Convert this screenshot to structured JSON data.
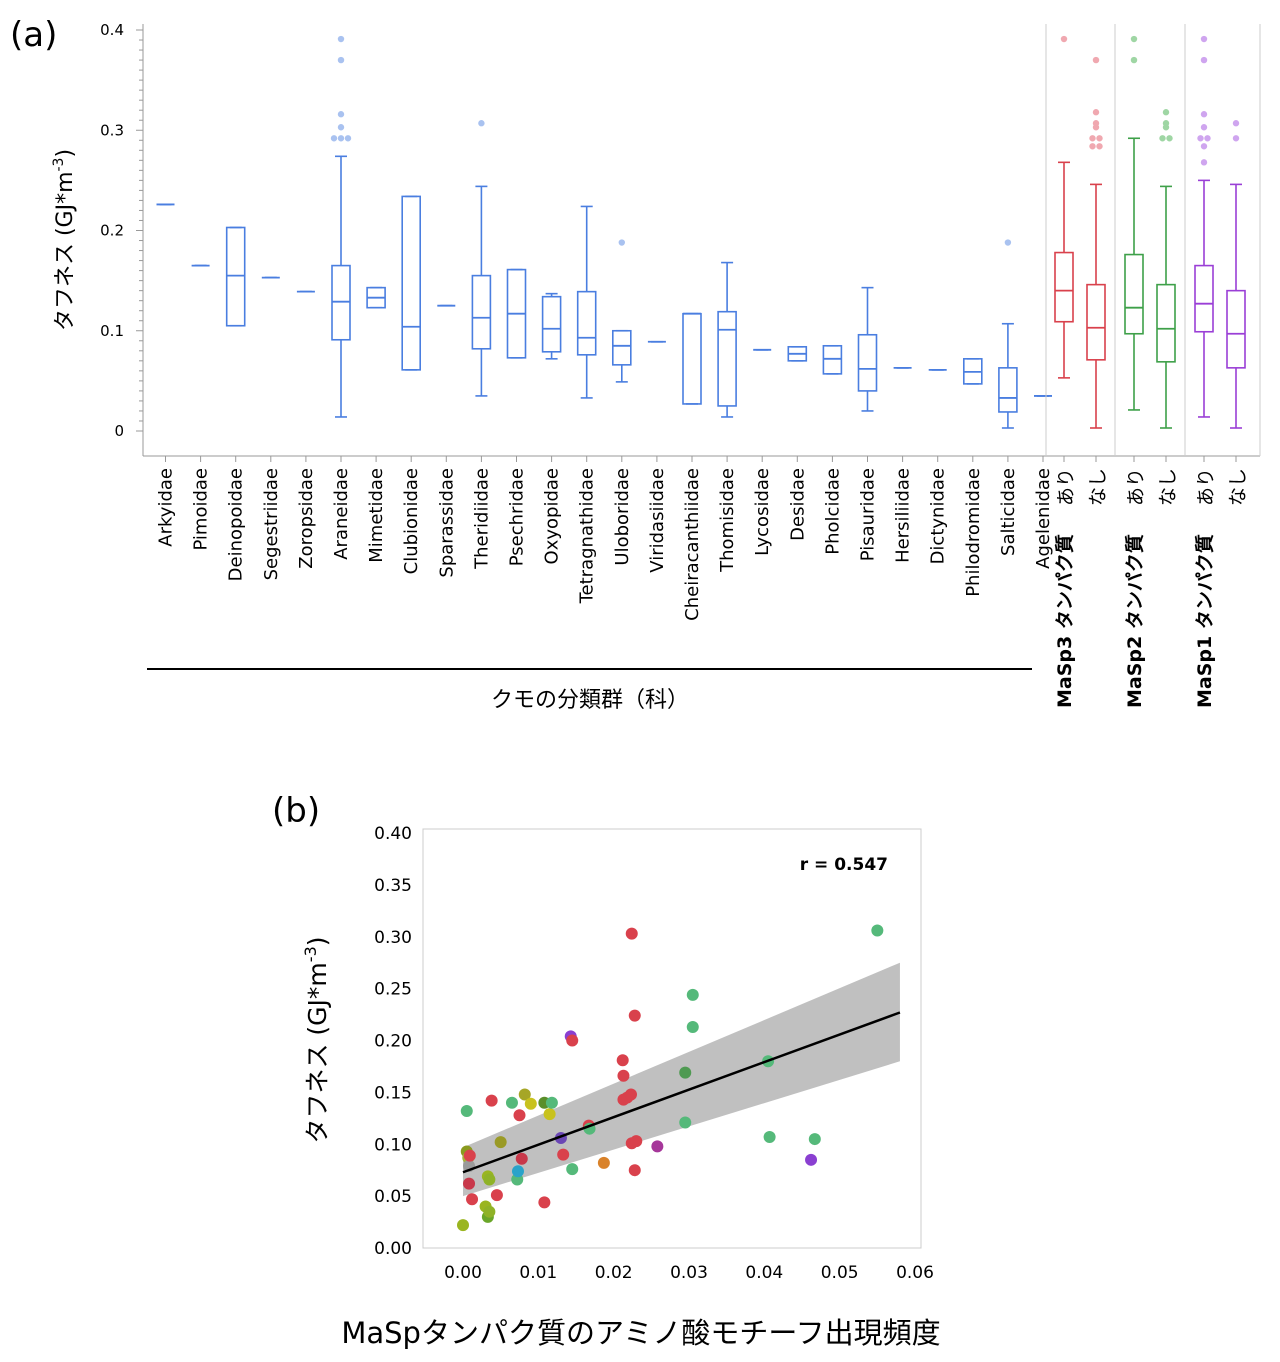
{
  "chart_data": [
    {
      "panel": "(a)",
      "type": "box",
      "ylabel": "タフネス (GJ*m-3)",
      "ylabel_parts": {
        "main": "タフネス (GJ*m",
        "sup": "-3",
        "close": ")"
      },
      "ylim": [
        0,
        0.4
      ],
      "yticks": [
        "0",
        "0.1",
        "0.2",
        "0.3",
        "0.4"
      ],
      "ytick_values": [
        0,
        0.1,
        0.2,
        0.3,
        0.4
      ],
      "family_group_label": "クモの分類群（科）",
      "color_family": "#4a7ee0",
      "color_family_outlier": "#a9c2f0",
      "families": [
        {
          "name": "Arkyidae",
          "q1": 0.226,
          "median": 0.226,
          "q3": 0.226,
          "low": 0.226,
          "high": 0.226,
          "outliers": []
        },
        {
          "name": "Pimoidae",
          "q1": 0.165,
          "median": 0.165,
          "q3": 0.165,
          "low": 0.165,
          "high": 0.165,
          "outliers": []
        },
        {
          "name": "Deinopoidae",
          "q1": 0.105,
          "median": 0.155,
          "q3": 0.203,
          "low": 0.105,
          "high": 0.203,
          "outliers": []
        },
        {
          "name": "Segestriidae",
          "q1": 0.153,
          "median": 0.153,
          "q3": 0.153,
          "low": 0.153,
          "high": 0.153,
          "outliers": []
        },
        {
          "name": "Zoropsidae",
          "q1": 0.139,
          "median": 0.139,
          "q3": 0.139,
          "low": 0.139,
          "high": 0.139,
          "outliers": []
        },
        {
          "name": "Araneidae",
          "q1": 0.091,
          "median": 0.129,
          "q3": 0.165,
          "low": 0.014,
          "high": 0.274,
          "outliers": [
            0.391,
            0.37,
            0.316,
            0.303,
            0.292,
            0.292,
            0.292
          ]
        },
        {
          "name": "Mimetidae",
          "q1": 0.123,
          "median": 0.133,
          "q3": 0.143,
          "low": 0.123,
          "high": 0.143,
          "outliers": []
        },
        {
          "name": "Clubionidae",
          "q1": 0.061,
          "median": 0.104,
          "q3": 0.234,
          "low": 0.061,
          "high": 0.234,
          "outliers": []
        },
        {
          "name": "Sparassidae",
          "q1": 0.125,
          "median": 0.125,
          "q3": 0.125,
          "low": 0.125,
          "high": 0.125,
          "outliers": []
        },
        {
          "name": "Theridiidae",
          "q1": 0.082,
          "median": 0.113,
          "q3": 0.155,
          "low": 0.035,
          "high": 0.244,
          "outliers": [
            0.307
          ]
        },
        {
          "name": "Psechridae",
          "q1": 0.073,
          "median": 0.117,
          "q3": 0.161,
          "low": 0.073,
          "high": 0.161,
          "outliers": []
        },
        {
          "name": "Oxyopidae",
          "q1": 0.079,
          "median": 0.102,
          "q3": 0.134,
          "low": 0.072,
          "high": 0.137,
          "outliers": []
        },
        {
          "name": "Tetragnathidae",
          "q1": 0.076,
          "median": 0.093,
          "q3": 0.139,
          "low": 0.033,
          "high": 0.224,
          "outliers": []
        },
        {
          "name": "Uloboridae",
          "q1": 0.066,
          "median": 0.085,
          "q3": 0.1,
          "low": 0.049,
          "high": 0.1,
          "outliers": [
            0.188
          ]
        },
        {
          "name": "Viridasiidae",
          "q1": 0.089,
          "median": 0.089,
          "q3": 0.089,
          "low": 0.089,
          "high": 0.089,
          "outliers": []
        },
        {
          "name": "Cheiracanthiidae",
          "q1": 0.027,
          "median": 0.117,
          "q3": 0.117,
          "low": 0.027,
          "high": 0.117,
          "outliers": []
        },
        {
          "name": "Thomisidae",
          "q1": 0.025,
          "median": 0.101,
          "q3": 0.119,
          "low": 0.014,
          "high": 0.168,
          "outliers": []
        },
        {
          "name": "Lycosidae",
          "q1": 0.081,
          "median": 0.081,
          "q3": 0.081,
          "low": 0.081,
          "high": 0.081,
          "outliers": []
        },
        {
          "name": "Desidae",
          "q1": 0.07,
          "median": 0.077,
          "q3": 0.084,
          "low": 0.07,
          "high": 0.084,
          "outliers": []
        },
        {
          "name": "Pholcidae",
          "q1": 0.057,
          "median": 0.072,
          "q3": 0.085,
          "low": 0.057,
          "high": 0.085,
          "outliers": []
        },
        {
          "name": "Pisauridae",
          "q1": 0.04,
          "median": 0.062,
          "q3": 0.096,
          "low": 0.02,
          "high": 0.143,
          "outliers": []
        },
        {
          "name": "Hersiliidae",
          "q1": 0.063,
          "median": 0.063,
          "q3": 0.063,
          "low": 0.063,
          "high": 0.063,
          "outliers": []
        },
        {
          "name": "Dictynidae",
          "q1": 0.061,
          "median": 0.061,
          "q3": 0.061,
          "low": 0.061,
          "high": 0.061,
          "outliers": []
        },
        {
          "name": "Philodromidae",
          "q1": 0.047,
          "median": 0.059,
          "q3": 0.072,
          "low": 0.047,
          "high": 0.072,
          "outliers": []
        },
        {
          "name": "Salticidae",
          "q1": 0.019,
          "median": 0.033,
          "q3": 0.063,
          "low": 0.003,
          "high": 0.107,
          "outliers": [
            0.188
          ]
        },
        {
          "name": "Agelenidae",
          "q1": 0.035,
          "median": 0.035,
          "q3": 0.035,
          "low": 0.035,
          "high": 0.035,
          "outliers": []
        }
      ],
      "masp_groups": [
        {
          "name": "MaSp3",
          "label": "MaSp3 タンパク質",
          "color": "#d9414c",
          "outlier_color": "#f0a8b0",
          "boxes": [
            {
              "label": "あり",
              "q1": 0.109,
              "median": 0.14,
              "q3": 0.178,
              "low": 0.053,
              "high": 0.268,
              "outliers": [
                0.391
              ]
            },
            {
              "label": "なし",
              "q1": 0.071,
              "median": 0.103,
              "q3": 0.146,
              "low": 0.003,
              "high": 0.246,
              "outliers": [
                0.37,
                0.318,
                0.307,
                0.303,
                0.292,
                0.292,
                0.284,
                0.284
              ]
            }
          ]
        },
        {
          "name": "MaSp2",
          "label": "MaSp2 タンパク質",
          "color": "#3ea049",
          "outlier_color": "#9fd6a4",
          "boxes": [
            {
              "label": "あり",
              "q1": 0.097,
              "median": 0.123,
              "q3": 0.176,
              "low": 0.021,
              "high": 0.292,
              "outliers": [
                0.391,
                0.37
              ]
            },
            {
              "label": "なし",
              "q1": 0.069,
              "median": 0.102,
              "q3": 0.146,
              "low": 0.003,
              "high": 0.244,
              "outliers": [
                0.318,
                0.307,
                0.303,
                0.292,
                0.292
              ]
            }
          ]
        },
        {
          "name": "MaSp1",
          "label": "MaSp1 タンパク質",
          "color": "#9a3fd6",
          "outlier_color": "#cfa5ef",
          "boxes": [
            {
              "label": "あり",
              "q1": 0.099,
              "median": 0.127,
              "q3": 0.165,
              "low": 0.014,
              "high": 0.25,
              "outliers": [
                0.391,
                0.37,
                0.316,
                0.303,
                0.292,
                0.292,
                0.284,
                0.268
              ]
            },
            {
              "label": "なし",
              "q1": 0.063,
              "median": 0.097,
              "q3": 0.14,
              "low": 0.003,
              "high": 0.246,
              "outliers": [
                0.307,
                0.292
              ]
            }
          ]
        }
      ]
    },
    {
      "panel": "(b)",
      "type": "scatter",
      "xlabel": "MaSpタンパク質のアミノ酸モチーフ出現頻度",
      "ylabel": "タフネス (GJ*m-3)",
      "ylabel_parts": {
        "main": "タフネス (GJ*m",
        "sup": "-3",
        "close": ")"
      },
      "xlim": [
        -0.004,
        0.06
      ],
      "ylim": [
        0,
        0.4
      ],
      "xticks": [
        "0.00",
        "0.01",
        "0.02",
        "0.03",
        "0.04",
        "0.05",
        "0.06"
      ],
      "xtick_values": [
        0,
        0.01,
        0.02,
        0.03,
        0.04,
        0.05,
        0.06
      ],
      "yticks": [
        "0.00",
        "0.05",
        "0.10",
        "0.15",
        "0.20",
        "0.25",
        "0.30",
        "0.35",
        "0.40"
      ],
      "ytick_values": [
        0,
        0.05,
        0.1,
        0.15,
        0.2,
        0.25,
        0.3,
        0.35,
        0.4
      ],
      "annotation": "r = 0.547",
      "regression": {
        "x": [
          0,
          0.058
        ],
        "y": [
          0.073,
          0.227
        ],
        "ci_upper": [
          0.097,
          0.275
        ],
        "ci_lower": [
          0.05,
          0.18
        ],
        "line_color": "#000000",
        "band_color": "#bdbdbd"
      },
      "points": [
        {
          "x": 0.0005,
          "y": 0.132,
          "color": "#55b97a"
        },
        {
          "x": 0.0005,
          "y": 0.093,
          "color": "#8a9a1f"
        },
        {
          "x": 0.0007,
          "y": 0.087,
          "color": "#a6b23a"
        },
        {
          "x": 0.0008,
          "y": 0.079,
          "color": "#9a9a9a"
        },
        {
          "x": 0.0009,
          "y": 0.089,
          "color": "#d9414c"
        },
        {
          "x": 0.0008,
          "y": 0.062,
          "color": "#c8384a"
        },
        {
          "x": 0.0012,
          "y": 0.047,
          "color": "#d9414c"
        },
        {
          "x": 0.0,
          "y": 0.022,
          "color": "#9ab520"
        },
        {
          "x": 0.003,
          "y": 0.04,
          "color": "#9ab520"
        },
        {
          "x": 0.0033,
          "y": 0.03,
          "color": "#6aa629"
        },
        {
          "x": 0.0035,
          "y": 0.035,
          "color": "#8fb227"
        },
        {
          "x": 0.0033,
          "y": 0.069,
          "color": "#9ab520"
        },
        {
          "x": 0.0035,
          "y": 0.066,
          "color": "#8fb227"
        },
        {
          "x": 0.0045,
          "y": 0.051,
          "color": "#d9414c"
        },
        {
          "x": 0.0038,
          "y": 0.142,
          "color": "#d9414c"
        },
        {
          "x": 0.005,
          "y": 0.102,
          "color": "#9a9a26"
        },
        {
          "x": 0.0065,
          "y": 0.14,
          "color": "#55b97a"
        },
        {
          "x": 0.0072,
          "y": 0.066,
          "color": "#55b97a"
        },
        {
          "x": 0.0073,
          "y": 0.074,
          "color": "#2aa3c9"
        },
        {
          "x": 0.0075,
          "y": 0.128,
          "color": "#d9414c"
        },
        {
          "x": 0.0078,
          "y": 0.086,
          "color": "#c8384a"
        },
        {
          "x": 0.0082,
          "y": 0.148,
          "color": "#a6a626"
        },
        {
          "x": 0.009,
          "y": 0.139,
          "color": "#c8c21e"
        },
        {
          "x": 0.0108,
          "y": 0.044,
          "color": "#d9414c"
        },
        {
          "x": 0.0108,
          "y": 0.14,
          "color": "#5a8e2a"
        },
        {
          "x": 0.0115,
          "y": 0.129,
          "color": "#c8c21e"
        },
        {
          "x": 0.0118,
          "y": 0.14,
          "color": "#55b97a"
        },
        {
          "x": 0.013,
          "y": 0.106,
          "color": "#6b47b5"
        },
        {
          "x": 0.0133,
          "y": 0.09,
          "color": "#d9414c"
        },
        {
          "x": 0.0143,
          "y": 0.204,
          "color": "#8a3fd1"
        },
        {
          "x": 0.0145,
          "y": 0.2,
          "color": "#d9414c"
        },
        {
          "x": 0.0145,
          "y": 0.076,
          "color": "#55b97a"
        },
        {
          "x": 0.0167,
          "y": 0.118,
          "color": "#d9414c"
        },
        {
          "x": 0.0168,
          "y": 0.115,
          "color": "#55b97a"
        },
        {
          "x": 0.0187,
          "y": 0.082,
          "color": "#d9822a"
        },
        {
          "x": 0.0212,
          "y": 0.181,
          "color": "#d9414c"
        },
        {
          "x": 0.0213,
          "y": 0.166,
          "color": "#d9414c"
        },
        {
          "x": 0.0213,
          "y": 0.143,
          "color": "#d9414c"
        },
        {
          "x": 0.0218,
          "y": 0.145,
          "color": "#d9414c"
        },
        {
          "x": 0.0223,
          "y": 0.148,
          "color": "#d9414c"
        },
        {
          "x": 0.0224,
          "y": 0.303,
          "color": "#d9414c"
        },
        {
          "x": 0.0224,
          "y": 0.101,
          "color": "#d9414c"
        },
        {
          "x": 0.023,
          "y": 0.103,
          "color": "#d9414c"
        },
        {
          "x": 0.0228,
          "y": 0.224,
          "color": "#d9414c"
        },
        {
          "x": 0.0228,
          "y": 0.075,
          "color": "#d9414c"
        },
        {
          "x": 0.0258,
          "y": 0.098,
          "color": "#a6379a"
        },
        {
          "x": 0.0295,
          "y": 0.169,
          "color": "#4f9a52"
        },
        {
          "x": 0.0295,
          "y": 0.121,
          "color": "#55b97a"
        },
        {
          "x": 0.0305,
          "y": 0.244,
          "color": "#55b97a"
        },
        {
          "x": 0.0305,
          "y": 0.213,
          "color": "#55b97a"
        },
        {
          "x": 0.0405,
          "y": 0.18,
          "color": "#55b97a"
        },
        {
          "x": 0.0407,
          "y": 0.107,
          "color": "#55b97a"
        },
        {
          "x": 0.0462,
          "y": 0.085,
          "color": "#8a3fd1"
        },
        {
          "x": 0.0467,
          "y": 0.105,
          "color": "#55b97a"
        },
        {
          "x": 0.055,
          "y": 0.306,
          "color": "#55b97a"
        }
      ]
    }
  ]
}
